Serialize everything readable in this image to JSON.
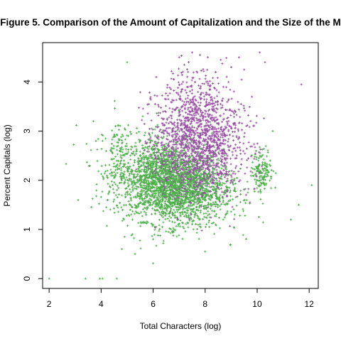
{
  "chart_data": {
    "type": "scatter",
    "title": "Figure 5. Comparison of the Amount of Capitalization and the Size of the M",
    "xlabel": "Total Characters (log)",
    "ylabel": "Percent Capitals (log)",
    "xlim": [
      1.75,
      12.35
    ],
    "ylim": [
      -0.2,
      4.8
    ],
    "x_ticks": [
      "2",
      "4",
      "6",
      "8",
      "10",
      "12"
    ],
    "y_ticks": [
      "0",
      "1",
      "2",
      "3",
      "4"
    ],
    "grid": false,
    "legend": "none",
    "colors": {
      "green": "#4daf4a",
      "purple": "#984ea3"
    },
    "marker": "plus",
    "series": [
      {
        "color_key": "green",
        "cluster_center": {
          "x": 6.6,
          "y": 1.95
        },
        "count": 2400,
        "x": [
          2.0,
          3.4,
          3.95,
          4.05,
          4.6,
          5.0,
          4.5,
          4.2,
          3.8,
          3.7,
          4.3,
          5.3,
          4.8,
          4.9,
          5.6,
          11.3,
          11.6,
          12.1,
          10.6,
          10.4,
          10.3,
          10.2,
          10.1,
          10.5,
          10.7,
          4.55,
          4.65,
          8.0,
          6.0,
          5.2
        ],
        "y": [
          0.0,
          0.0,
          0.0,
          0.0,
          0.0,
          4.4,
          2.9,
          1.45,
          2.8,
          3.2,
          1.75,
          0.5,
          0.6,
          0.85,
          3.3,
          1.2,
          1.5,
          1.9,
          3.0,
          2.2,
          2.3,
          2.15,
          2.05,
          2.4,
          1.85,
          3.1,
          2.7,
          0.55,
          0.8,
          0.9
        ]
      },
      {
        "color_key": "purple",
        "cluster_center": {
          "x": 7.7,
          "y": 2.8
        },
        "count": 1600,
        "x": [
          7.5,
          7.8,
          8.1,
          8.6,
          9.0,
          9.3,
          9.5,
          10.1,
          10.3,
          11.7,
          7.2,
          6.8,
          8.4,
          9.8,
          7.0,
          8.9
        ],
        "y": [
          4.6,
          4.55,
          4.5,
          4.45,
          4.3,
          4.5,
          4.25,
          4.6,
          4.4,
          3.95,
          4.35,
          4.05,
          4.2,
          3.7,
          4.5,
          4.0
        ]
      }
    ]
  }
}
